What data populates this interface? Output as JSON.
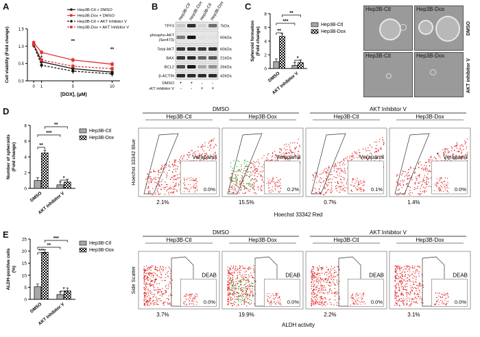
{
  "panels": {
    "a": "A",
    "b": "B",
    "c": "C",
    "d": "D",
    "e": "E"
  },
  "chart_data": [
    {
      "id": "A",
      "type": "line",
      "ylabel": "Cell viability (Fold change)",
      "xlabel": "[DOX], (μM)",
      "x": [
        0,
        1,
        5,
        10
      ],
      "xticks": [
        "0",
        "1",
        "5",
        "10"
      ],
      "ylim": [
        0,
        1.5
      ],
      "yticks": [
        "0.0",
        "0.5",
        "1.0",
        "1.5"
      ],
      "series": [
        {
          "name": "Hep3B-Ctl + DMSO",
          "color": "#111111",
          "dash": false,
          "values": [
            1.05,
            0.55,
            0.35,
            0.25
          ]
        },
        {
          "name": "Hep3B-Dox + DMSO",
          "color": "#e03030",
          "dash": false,
          "values": [
            1.1,
            0.82,
            0.6,
            0.48
          ]
        },
        {
          "name": "Hep3B-Ctl + AKT Inhibitor V",
          "color": "#111111",
          "dash": true,
          "values": [
            1.02,
            0.45,
            0.28,
            0.2
          ]
        },
        {
          "name": "Hep3B-Dox + AKT Inhibitor V",
          "color": "#e03030",
          "dash": true,
          "values": [
            1.05,
            0.6,
            0.42,
            0.35
          ]
        }
      ],
      "annotations": [
        "*",
        "**",
        "**"
      ]
    },
    {
      "id": "C",
      "type": "bar",
      "ylabel": "Spheroid formaiton (Fold change)",
      "categories": [
        "DMSO",
        "AKT Inhibitor V"
      ],
      "ylim": [
        0,
        8
      ],
      "yticks": [
        "0",
        "2",
        "4",
        "6",
        "8"
      ],
      "series": [
        {
          "name": "Hep3B-Ctl",
          "values": [
            1.0,
            0.45
          ]
        },
        {
          "name": "Hep3B-Dox",
          "values": [
            4.7,
            0.85
          ]
        }
      ],
      "annotations": [
        "**",
        "***",
        "*",
        "**"
      ]
    },
    {
      "id": "D",
      "type": "bar",
      "ylabel": "Number of spheroids (Fold change)",
      "categories": [
        "DMSO",
        "AKT Inhibitor V"
      ],
      "ylim": [
        0,
        8
      ],
      "yticks": [
        "0",
        "2",
        "4",
        "6",
        "8"
      ],
      "series": [
        {
          "name": "Hep3B-Ctl",
          "values": [
            1.0,
            0.45
          ]
        },
        {
          "name": "Hep3B-Dox",
          "values": [
            4.5,
            0.8
          ]
        }
      ],
      "annotations": [
        "**",
        "***",
        "*",
        "**"
      ]
    },
    {
      "id": "E",
      "type": "bar",
      "ylabel": "ALDH-positive cells (%)",
      "categories": [
        "DMSO",
        "AKT Inhibitor V"
      ],
      "ylim": [
        0,
        25
      ],
      "yticks": [
        "0",
        "5",
        "10",
        "15",
        "20",
        "25"
      ],
      "series": [
        {
          "name": "Hep3B-Ctl",
          "values": [
            5.2,
            2.0
          ]
        },
        {
          "name": "Hep3B-Dox",
          "values": [
            19.5,
            3.5
          ]
        }
      ],
      "annotations": [
        "***",
        "**",
        "*",
        "***"
      ]
    }
  ],
  "blot": {
    "lanes": [
      "Hep3B-Ctl",
      "Hep3B-Dox",
      "Hep3B-Ctl",
      "Hep3B-Dox"
    ],
    "rows": [
      {
        "name": "TFF3",
        "kda": "7kDa",
        "bands": [
          0.15,
          0.85,
          0.1,
          0.55
        ]
      },
      {
        "name": "phospho-AKT\n(Ser473)",
        "kda": "60kDa",
        "bands": [
          0.5,
          0.95,
          0.05,
          0.05
        ]
      },
      {
        "name": "Total AKT",
        "kda": "60kDa",
        "bands": [
          0.8,
          0.85,
          0.8,
          0.85
        ]
      },
      {
        "name": "BAX",
        "kda": "21kDa",
        "bands": [
          0.8,
          0.85,
          0.6,
          0.65
        ]
      },
      {
        "name": "BCL2",
        "kda": "26kDa",
        "bands": [
          0.7,
          0.95,
          0.3,
          0.4
        ]
      },
      {
        "name": "β-ACTIN",
        "kda": "42kDa",
        "bands": [
          0.85,
          0.85,
          0.85,
          0.85
        ]
      }
    ],
    "treatments": [
      {
        "name": "DMSO",
        "signs": [
          "+",
          "+",
          "-",
          "-"
        ]
      },
      {
        "name": "AKT inhibitor V",
        "signs": [
          "-",
          "-",
          "+",
          "+"
        ]
      }
    ]
  },
  "spheroid_images": {
    "cols": [
      "Hep3B-Ctl",
      "Hep3B-Dox"
    ],
    "rows": [
      "DMSO",
      "AKT inhibitor V"
    ]
  },
  "side_population": {
    "groups": [
      "DMSO",
      "AKT Inhibitor V"
    ],
    "cols": [
      "Hep3B-Ctl",
      "Hep3B-Dox",
      "Hep3B-Ctl",
      "Hep3B-Dox"
    ],
    "inset_label": "Verapamil",
    "inset_values": [
      "0.0%",
      "0.2%",
      "0.1%",
      "0.0%"
    ],
    "values": [
      "2.1%",
      "15.5%",
      "0.7%",
      "1.4%"
    ],
    "ylabel": "Hoechst 33342 Blue",
    "xlabel": "Hoechst 33342 Red"
  },
  "aldefluor": {
    "groups": [
      "DMSO",
      "AKT Inhibitor V"
    ],
    "cols": [
      "Hep3B-Ctl",
      "Hep3B-Dox",
      "Hep3B-Ctl",
      "Hep3B-Dox"
    ],
    "inset_label": "DEAB",
    "inset_values": [
      "0.0%",
      "0.0%",
      "0.0%",
      "0.0%"
    ],
    "values": [
      "3.7%",
      "19.9%",
      "2.2%",
      "3.1%"
    ],
    "ylabel": "Side Scatter",
    "xlabel": "ALDH activity"
  }
}
